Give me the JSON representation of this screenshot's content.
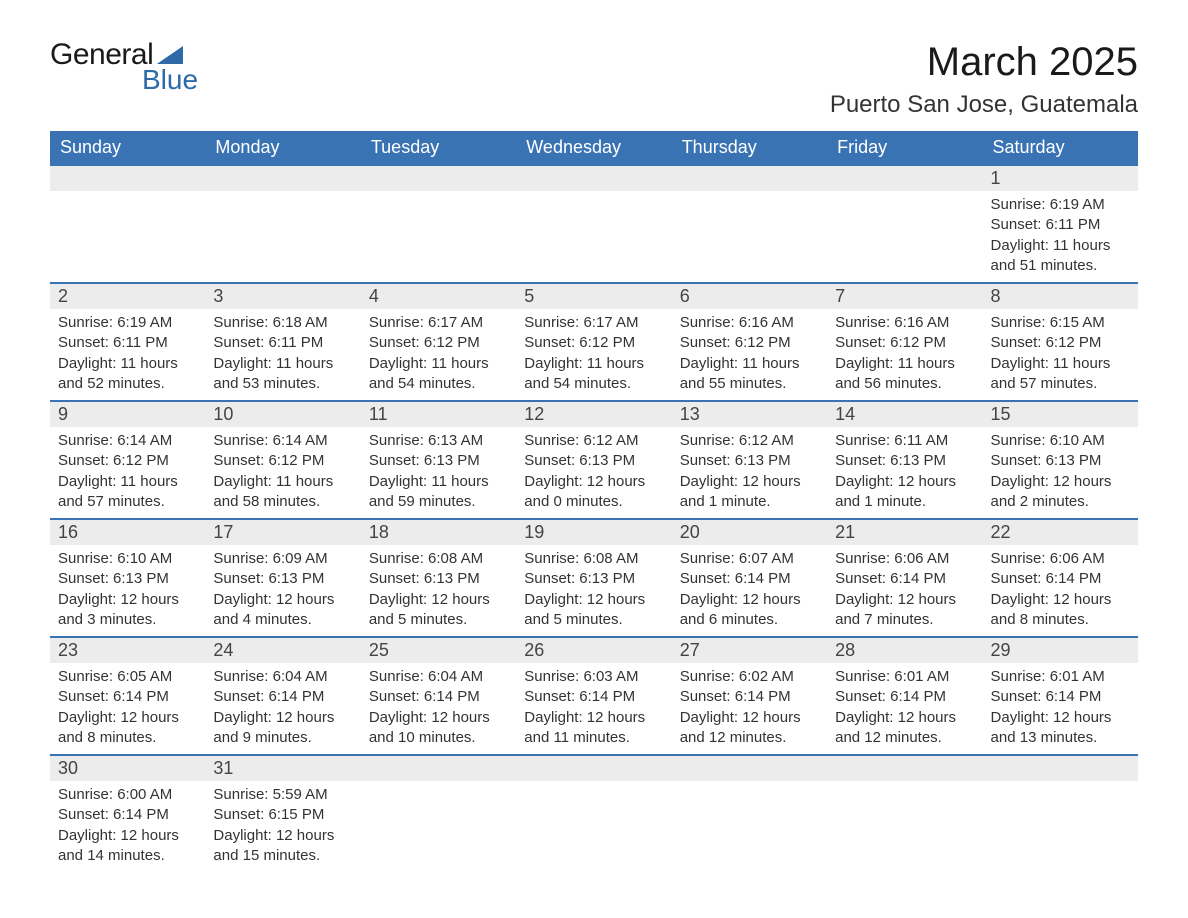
{
  "logo": {
    "text_general": "General",
    "text_blue": "Blue",
    "flag_color": "#2f6aa8"
  },
  "title": "March 2025",
  "location": "Puerto San Jose, Guatemala",
  "colors": {
    "header_bg": "#3a73b3",
    "header_text": "#ffffff",
    "row_divider": "#3a73b3",
    "daynum_bg": "#ececec",
    "body_text": "#333333",
    "page_bg": "#ffffff"
  },
  "day_headers": [
    "Sunday",
    "Monday",
    "Tuesday",
    "Wednesday",
    "Thursday",
    "Friday",
    "Saturday"
  ],
  "weeks": [
    [
      null,
      null,
      null,
      null,
      null,
      null,
      {
        "n": "1",
        "sunrise": "Sunrise: 6:19 AM",
        "sunset": "Sunset: 6:11 PM",
        "daylight": "Daylight: 11 hours and 51 minutes."
      }
    ],
    [
      {
        "n": "2",
        "sunrise": "Sunrise: 6:19 AM",
        "sunset": "Sunset: 6:11 PM",
        "daylight": "Daylight: 11 hours and 52 minutes."
      },
      {
        "n": "3",
        "sunrise": "Sunrise: 6:18 AM",
        "sunset": "Sunset: 6:11 PM",
        "daylight": "Daylight: 11 hours and 53 minutes."
      },
      {
        "n": "4",
        "sunrise": "Sunrise: 6:17 AM",
        "sunset": "Sunset: 6:12 PM",
        "daylight": "Daylight: 11 hours and 54 minutes."
      },
      {
        "n": "5",
        "sunrise": "Sunrise: 6:17 AM",
        "sunset": "Sunset: 6:12 PM",
        "daylight": "Daylight: 11 hours and 54 minutes."
      },
      {
        "n": "6",
        "sunrise": "Sunrise: 6:16 AM",
        "sunset": "Sunset: 6:12 PM",
        "daylight": "Daylight: 11 hours and 55 minutes."
      },
      {
        "n": "7",
        "sunrise": "Sunrise: 6:16 AM",
        "sunset": "Sunset: 6:12 PM",
        "daylight": "Daylight: 11 hours and 56 minutes."
      },
      {
        "n": "8",
        "sunrise": "Sunrise: 6:15 AM",
        "sunset": "Sunset: 6:12 PM",
        "daylight": "Daylight: 11 hours and 57 minutes."
      }
    ],
    [
      {
        "n": "9",
        "sunrise": "Sunrise: 6:14 AM",
        "sunset": "Sunset: 6:12 PM",
        "daylight": "Daylight: 11 hours and 57 minutes."
      },
      {
        "n": "10",
        "sunrise": "Sunrise: 6:14 AM",
        "sunset": "Sunset: 6:12 PM",
        "daylight": "Daylight: 11 hours and 58 minutes."
      },
      {
        "n": "11",
        "sunrise": "Sunrise: 6:13 AM",
        "sunset": "Sunset: 6:13 PM",
        "daylight": "Daylight: 11 hours and 59 minutes."
      },
      {
        "n": "12",
        "sunrise": "Sunrise: 6:12 AM",
        "sunset": "Sunset: 6:13 PM",
        "daylight": "Daylight: 12 hours and 0 minutes."
      },
      {
        "n": "13",
        "sunrise": "Sunrise: 6:12 AM",
        "sunset": "Sunset: 6:13 PM",
        "daylight": "Daylight: 12 hours and 1 minute."
      },
      {
        "n": "14",
        "sunrise": "Sunrise: 6:11 AM",
        "sunset": "Sunset: 6:13 PM",
        "daylight": "Daylight: 12 hours and 1 minute."
      },
      {
        "n": "15",
        "sunrise": "Sunrise: 6:10 AM",
        "sunset": "Sunset: 6:13 PM",
        "daylight": "Daylight: 12 hours and 2 minutes."
      }
    ],
    [
      {
        "n": "16",
        "sunrise": "Sunrise: 6:10 AM",
        "sunset": "Sunset: 6:13 PM",
        "daylight": "Daylight: 12 hours and 3 minutes."
      },
      {
        "n": "17",
        "sunrise": "Sunrise: 6:09 AM",
        "sunset": "Sunset: 6:13 PM",
        "daylight": "Daylight: 12 hours and 4 minutes."
      },
      {
        "n": "18",
        "sunrise": "Sunrise: 6:08 AM",
        "sunset": "Sunset: 6:13 PM",
        "daylight": "Daylight: 12 hours and 5 minutes."
      },
      {
        "n": "19",
        "sunrise": "Sunrise: 6:08 AM",
        "sunset": "Sunset: 6:13 PM",
        "daylight": "Daylight: 12 hours and 5 minutes."
      },
      {
        "n": "20",
        "sunrise": "Sunrise: 6:07 AM",
        "sunset": "Sunset: 6:14 PM",
        "daylight": "Daylight: 12 hours and 6 minutes."
      },
      {
        "n": "21",
        "sunrise": "Sunrise: 6:06 AM",
        "sunset": "Sunset: 6:14 PM",
        "daylight": "Daylight: 12 hours and 7 minutes."
      },
      {
        "n": "22",
        "sunrise": "Sunrise: 6:06 AM",
        "sunset": "Sunset: 6:14 PM",
        "daylight": "Daylight: 12 hours and 8 minutes."
      }
    ],
    [
      {
        "n": "23",
        "sunrise": "Sunrise: 6:05 AM",
        "sunset": "Sunset: 6:14 PM",
        "daylight": "Daylight: 12 hours and 8 minutes."
      },
      {
        "n": "24",
        "sunrise": "Sunrise: 6:04 AM",
        "sunset": "Sunset: 6:14 PM",
        "daylight": "Daylight: 12 hours and 9 minutes."
      },
      {
        "n": "25",
        "sunrise": "Sunrise: 6:04 AM",
        "sunset": "Sunset: 6:14 PM",
        "daylight": "Daylight: 12 hours and 10 minutes."
      },
      {
        "n": "26",
        "sunrise": "Sunrise: 6:03 AM",
        "sunset": "Sunset: 6:14 PM",
        "daylight": "Daylight: 12 hours and 11 minutes."
      },
      {
        "n": "27",
        "sunrise": "Sunrise: 6:02 AM",
        "sunset": "Sunset: 6:14 PM",
        "daylight": "Daylight: 12 hours and 12 minutes."
      },
      {
        "n": "28",
        "sunrise": "Sunrise: 6:01 AM",
        "sunset": "Sunset: 6:14 PM",
        "daylight": "Daylight: 12 hours and 12 minutes."
      },
      {
        "n": "29",
        "sunrise": "Sunrise: 6:01 AM",
        "sunset": "Sunset: 6:14 PM",
        "daylight": "Daylight: 12 hours and 13 minutes."
      }
    ],
    [
      {
        "n": "30",
        "sunrise": "Sunrise: 6:00 AM",
        "sunset": "Sunset: 6:14 PM",
        "daylight": "Daylight: 12 hours and 14 minutes."
      },
      {
        "n": "31",
        "sunrise": "Sunrise: 5:59 AM",
        "sunset": "Sunset: 6:15 PM",
        "daylight": "Daylight: 12 hours and 15 minutes."
      },
      null,
      null,
      null,
      null,
      null
    ]
  ]
}
